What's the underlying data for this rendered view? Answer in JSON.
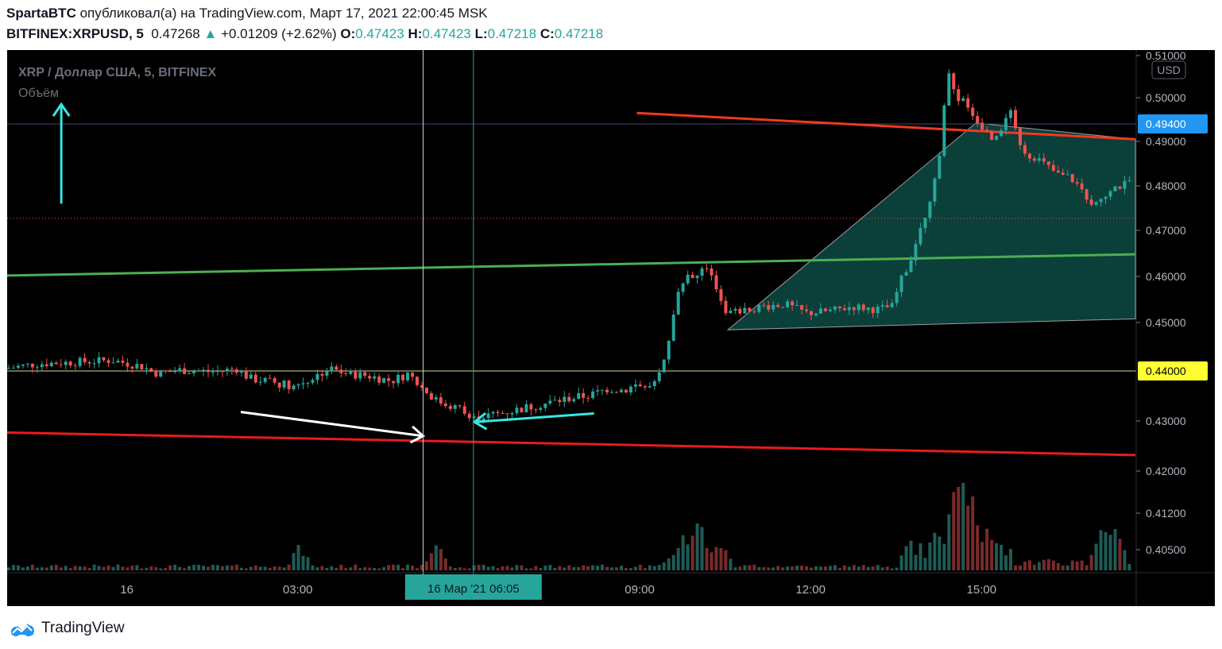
{
  "header": {
    "author": "SpartaBTC",
    "published_text": "опубликовал(а) на TradingView.com, Март 17, 2021 22:00:45 MSK",
    "symbol": "BITFINEX:XRPUSD, 5",
    "last": "0.47268",
    "change": "+0.01209 (+2.62%)",
    "o_label": "O:",
    "o_value": "0.47423",
    "h_label": "H:",
    "h_value": "0.47423",
    "l_label": "L:",
    "l_value": "0.47218",
    "c_label": "C:",
    "c_value": "0.47218"
  },
  "legend": {
    "title": "XRP / Доллар США, 5, BITFINEX",
    "volume_label": "Объём"
  },
  "currency_badge": "USD",
  "footer": {
    "brand": "TradingView",
    "logo_icon": "tradingview-cloud-icon"
  },
  "colors": {
    "up": "#26a69a",
    "down": "#ef5350",
    "background": "#000000",
    "resistance": "#f23820",
    "support": "#4caf50",
    "channel_fill": "#0c4a44",
    "cyan_arrow": "#38e6e0",
    "highlight_price": "#ffff33",
    "current_price": "#2196f3"
  },
  "chart_data": {
    "type": "candlestick",
    "title": "XRP / Доллар США, 5, BITFINEX",
    "ylim": [
      0.398,
      0.5115
    ],
    "y_ticks": [
      0.51,
      0.5,
      0.49,
      0.48,
      0.47,
      0.46,
      0.45,
      0.43,
      0.42,
      0.412,
      0.405
    ],
    "y_tick_labels": [
      "0.51000",
      "0.50000",
      "0.49000",
      "0.48000",
      "0.47000",
      "0.46000",
      "0.45000",
      "0.43000",
      "0.42000",
      "0.41200",
      "0.40500"
    ],
    "x_ticks": [
      {
        "label": "16",
        "hour": 0.0
      },
      {
        "label": "03:00",
        "hour": 3.0
      },
      {
        "label": "09:00",
        "hour": 9.0
      },
      {
        "label": "12:00",
        "hour": 12.0
      },
      {
        "label": "15:00",
        "hour": 15.0
      }
    ],
    "x_range_hours": [
      -2.1,
      17.7
    ],
    "crosshair": {
      "hour": 6.083,
      "label": "16 Мар '21   06:05"
    },
    "price_labels": [
      {
        "value": 0.494,
        "text": "0.49400",
        "kind": "current"
      },
      {
        "value": 0.44,
        "text": "0.44000",
        "kind": "highlight"
      }
    ],
    "last_price": 0.4727,
    "price_path": [
      [
        -2.1,
        0.4405
      ],
      [
        -1.5,
        0.4415
      ],
      [
        -0.9,
        0.4418
      ],
      [
        -0.2,
        0.4422
      ],
      [
        0.3,
        0.441
      ],
      [
        0.6,
        0.4395
      ],
      [
        1.0,
        0.4402
      ],
      [
        1.6,
        0.4398
      ],
      [
        2.0,
        0.4405
      ],
      [
        2.2,
        0.4385
      ],
      [
        2.6,
        0.4378
      ],
      [
        3.0,
        0.437
      ],
      [
        3.3,
        0.4385
      ],
      [
        3.6,
        0.4405
      ],
      [
        3.9,
        0.4395
      ],
      [
        4.3,
        0.439
      ],
      [
        4.7,
        0.438
      ],
      [
        5.0,
        0.4395
      ],
      [
        5.2,
        0.437
      ],
      [
        5.5,
        0.434
      ],
      [
        5.9,
        0.4325
      ],
      [
        6.1,
        0.4302
      ],
      [
        6.3,
        0.431
      ],
      [
        6.6,
        0.4315
      ],
      [
        7.0,
        0.4325
      ],
      [
        7.4,
        0.4335
      ],
      [
        7.8,
        0.4345
      ],
      [
        8.2,
        0.4352
      ],
      [
        8.5,
        0.4365
      ],
      [
        8.8,
        0.4362
      ],
      [
        9.0,
        0.4372
      ],
      [
        9.2,
        0.4365
      ],
      [
        9.35,
        0.4375
      ],
      [
        9.5,
        0.442
      ],
      [
        9.6,
        0.449
      ],
      [
        9.7,
        0.4555
      ],
      [
        9.85,
        0.4605
      ],
      [
        10.0,
        0.46
      ],
      [
        10.2,
        0.462
      ],
      [
        10.4,
        0.4575
      ],
      [
        10.55,
        0.452
      ],
      [
        10.8,
        0.4525
      ],
      [
        11.2,
        0.4535
      ],
      [
        11.6,
        0.454
      ],
      [
        12.0,
        0.452
      ],
      [
        12.4,
        0.4525
      ],
      [
        12.8,
        0.4535
      ],
      [
        13.2,
        0.4528
      ],
      [
        13.5,
        0.4535
      ],
      [
        13.6,
        0.458
      ],
      [
        13.75,
        0.462
      ],
      [
        13.95,
        0.469
      ],
      [
        14.1,
        0.475
      ],
      [
        14.25,
        0.482
      ],
      [
        14.35,
        0.4885
      ],
      [
        14.45,
        0.5065
      ],
      [
        14.6,
        0.5
      ],
      [
        14.8,
        0.4985
      ],
      [
        15.0,
        0.4945
      ],
      [
        15.2,
        0.491
      ],
      [
        15.4,
        0.4925
      ],
      [
        15.55,
        0.497
      ],
      [
        15.7,
        0.4905
      ],
      [
        15.85,
        0.487
      ],
      [
        16.0,
        0.4865
      ],
      [
        16.2,
        0.4845
      ],
      [
        16.4,
        0.4825
      ],
      [
        16.6,
        0.482
      ],
      [
        16.8,
        0.4795
      ],
      [
        17.0,
        0.4752
      ],
      [
        17.2,
        0.4782
      ],
      [
        17.4,
        0.4795
      ],
      [
        17.6,
        0.4805
      ],
      [
        17.7,
        0.482
      ]
    ],
    "volume_ylim": [
      0,
      1
    ],
    "volume_spikes": [
      {
        "hour": 3.0,
        "v": 0.2
      },
      {
        "hour": 5.4,
        "v": 0.22
      },
      {
        "hour": 9.55,
        "v": 0.12
      },
      {
        "hour": 9.75,
        "v": 0.35
      },
      {
        "hour": 10.0,
        "v": 0.47
      },
      {
        "hour": 10.35,
        "v": 0.28
      },
      {
        "hour": 14.2,
        "v": 0.32
      },
      {
        "hour": 14.55,
        "v": 1.0
      },
      {
        "hour": 14.8,
        "v": 0.62
      },
      {
        "hour": 15.1,
        "v": 0.35
      },
      {
        "hour": 17.1,
        "v": 0.42
      },
      {
        "hour": 17.3,
        "v": 0.48
      }
    ],
    "drawings": {
      "resistance_upper": {
        "from": [
          8.95,
          0.4965
        ],
        "to": [
          17.7,
          0.4905
        ]
      },
      "resistance_lower": {
        "from": [
          -2.1,
          0.4277
        ],
        "to": [
          17.7,
          0.4232
        ]
      },
      "support": {
        "from": [
          -2.1,
          0.4602
        ],
        "to": [
          17.7,
          0.4648
        ]
      },
      "channel": [
        [
          10.55,
          0.4485
        ],
        [
          14.9,
          0.4942
        ],
        [
          17.7,
          0.4905
        ],
        [
          17.7,
          0.4508
        ]
      ],
      "hline": 0.494,
      "hline_low": 0.44
    },
    "annotations": [
      {
        "type": "arrow",
        "color": "#38e6e0",
        "from": [
          -1.15,
          0.476
        ],
        "to": [
          -1.15,
          0.4985
        ]
      },
      {
        "type": "arrow",
        "color": "#ffffff",
        "from": [
          2.0,
          0.4318
        ],
        "to": [
          5.2,
          0.427
        ]
      },
      {
        "type": "arrow",
        "color": "#38e6e0",
        "from": [
          8.2,
          0.4315
        ],
        "to": [
          6.1,
          0.4298
        ]
      }
    ]
  }
}
